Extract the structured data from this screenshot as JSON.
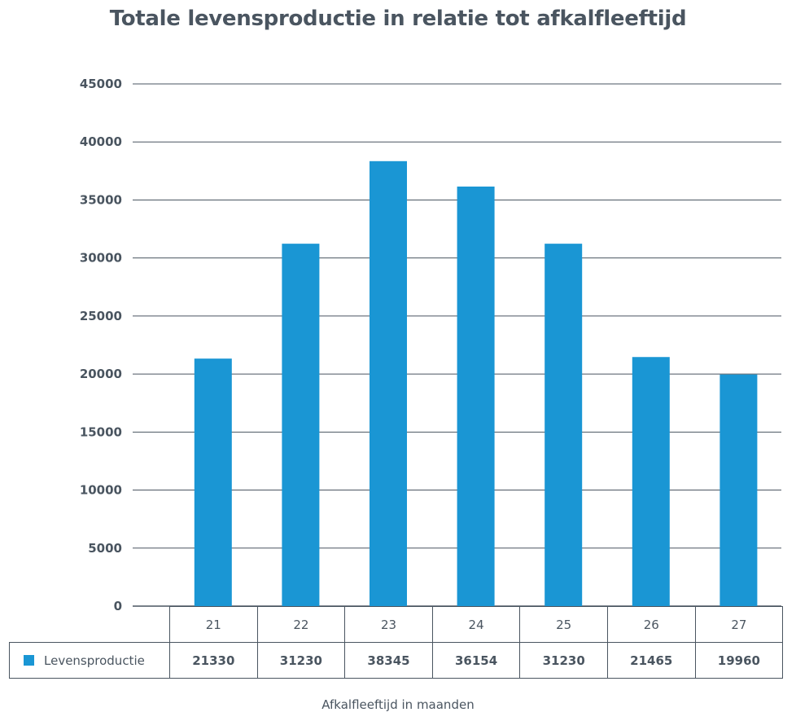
{
  "chart_data": {
    "type": "bar",
    "title": "Totale levensproductie in relatie tot afkalfleeftijd",
    "xlabel": "Afkalfleeftijd in maanden",
    "ylabel": "",
    "categories": [
      "21",
      "22",
      "23",
      "24",
      "25",
      "26",
      "27"
    ],
    "series": [
      {
        "name": "Levensproductie",
        "values": [
          21330,
          31230,
          38345,
          36154,
          31230,
          21465,
          19960
        ]
      }
    ],
    "ylim": [
      0,
      45000
    ],
    "yticks": [
      0,
      5000,
      10000,
      15000,
      20000,
      25000,
      30000,
      35000,
      40000,
      45000
    ],
    "grid": true,
    "legend": "data-table",
    "colors": {
      "bar": "#1a96d4",
      "text": "#4a5560",
      "grid": "#4a5560"
    }
  }
}
